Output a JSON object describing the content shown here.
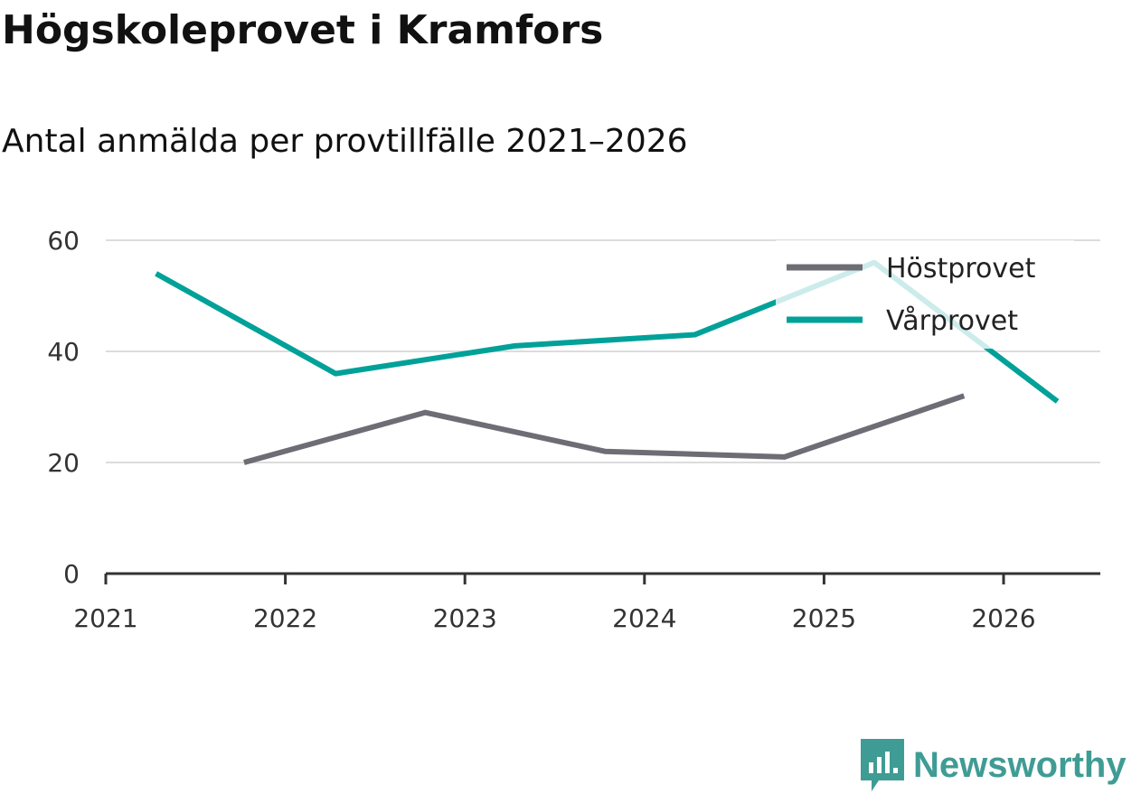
{
  "title": "Högskoleprovet i Kramfors",
  "subtitle": "Antal anmälda per provtillfälle 2021–2026",
  "logo": "Newsworthy",
  "chart_data": {
    "type": "line",
    "xlim": [
      2021,
      2026.55
    ],
    "ylim": [
      0,
      60
    ],
    "xticks": [
      2021,
      2022,
      2023,
      2024,
      2025,
      2026
    ],
    "yticks": [
      0,
      20,
      40,
      60
    ],
    "grid": true,
    "legend_placement": "top-right",
    "series": [
      {
        "name": "Höstprovet",
        "color": "#6e6d75",
        "x": [
          2021.77,
          2022.78,
          2023.78,
          2024.78,
          2025.78
        ],
        "values": [
          20,
          29,
          22,
          21,
          32
        ]
      },
      {
        "name": "Vårprovet",
        "color": "#00a199",
        "x": [
          2021.28,
          2022.28,
          2023.28,
          2024.28,
          2025.28,
          2026.3
        ],
        "values": [
          54,
          36,
          41,
          43,
          56,
          31
        ]
      }
    ]
  }
}
